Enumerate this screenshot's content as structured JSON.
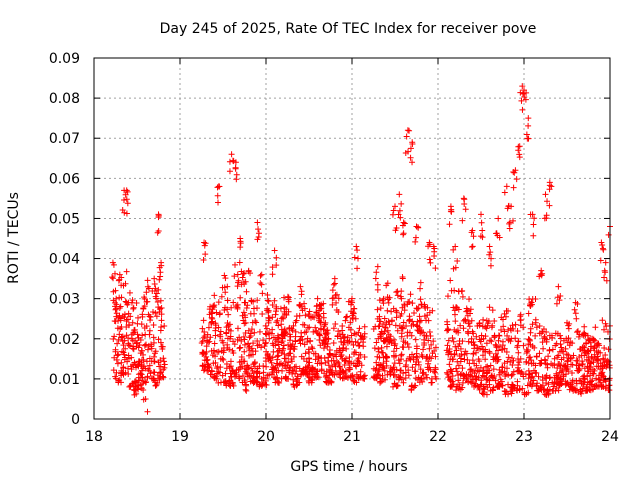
{
  "chart_data": {
    "type": "scatter",
    "title": "Day 245 of 2025, Rate Of TEC Index for receiver pove",
    "xlabel": "GPS time / hours",
    "ylabel": "ROTI / TECUs",
    "xlim": [
      18,
      24
    ],
    "ylim": [
      0,
      0.09
    ],
    "xticks": [
      "18",
      "19",
      "20",
      "21",
      "22",
      "23",
      "24"
    ],
    "yticks": [
      "0",
      "0.01",
      "0.02",
      "0.03",
      "0.04",
      "0.05",
      "0.06",
      "0.07",
      "0.08",
      "0.09"
    ],
    "grid": true,
    "marker": "+",
    "color": "#ff0000",
    "series": [
      {
        "name": "ROTI",
        "x": [
          18.22,
          18.25,
          18.3,
          18.35,
          18.38,
          18.4,
          18.45,
          18.5,
          18.55,
          18.6,
          18.65,
          18.7,
          18.75,
          18.78,
          18.8,
          19.28,
          19.35,
          19.45,
          19.55,
          19.6,
          19.65,
          19.7,
          19.75,
          19.8,
          19.9,
          19.95,
          20.0,
          20.1,
          20.2,
          20.3,
          20.4,
          20.5,
          20.6,
          20.7,
          20.8,
          20.9,
          21.0,
          21.05,
          21.1,
          21.3,
          21.4,
          21.5,
          21.55,
          21.6,
          21.65,
          21.7,
          21.75,
          21.8,
          21.9,
          21.95,
          22.15,
          22.2,
          22.3,
          22.4,
          22.5,
          22.6,
          22.7,
          22.8,
          22.85,
          22.9,
          22.95,
          22.98,
          23.0,
          23.05,
          23.1,
          23.2,
          23.25,
          23.3,
          23.4,
          23.5,
          23.6,
          23.7,
          23.8,
          23.9,
          23.95,
          24.0
        ],
        "y": [
          0.039,
          0.032,
          0.036,
          0.057,
          0.057,
          0.029,
          0.024,
          0.019,
          0.014,
          0.005,
          0.022,
          0.035,
          0.051,
          0.039,
          0.018,
          0.044,
          0.028,
          0.058,
          0.033,
          0.066,
          0.064,
          0.045,
          0.029,
          0.022,
          0.049,
          0.036,
          0.019,
          0.042,
          0.025,
          0.018,
          0.033,
          0.015,
          0.03,
          0.022,
          0.035,
          0.019,
          0.03,
          0.043,
          0.016,
          0.038,
          0.024,
          0.053,
          0.056,
          0.049,
          0.072,
          0.069,
          0.048,
          0.034,
          0.044,
          0.043,
          0.053,
          0.043,
          0.055,
          0.047,
          0.051,
          0.043,
          0.05,
          0.058,
          0.053,
          0.062,
          0.068,
          0.083,
          0.082,
          0.075,
          0.051,
          0.037,
          0.056,
          0.059,
          0.033,
          0.024,
          0.029,
          0.023,
          0.02,
          0.044,
          0.039,
          0.048
        ]
      }
    ],
    "envelope": {
      "segments": [
        {
          "x0": 18.22,
          "x1": 18.82,
          "top": [
            0.03,
            0.034,
            0.038,
            0.034,
            0.029,
            0.03,
            0.035,
            0.033,
            0.036,
            0.031
          ],
          "bottom": [
            0.01,
            0.009,
            0.011,
            0.008,
            0.006,
            0.007,
            0.009,
            0.01,
            0.008,
            0.009
          ]
        },
        {
          "x0": 19.25,
          "x1": 21.15,
          "top": [
            0.025,
            0.032,
            0.036,
            0.03,
            0.04,
            0.037,
            0.032,
            0.03,
            0.034,
            0.028,
            0.031,
            0.026,
            0.03,
            0.027,
            0.029,
            0.025,
            0.031,
            0.026,
            0.03,
            0.024
          ],
          "bottom": [
            0.012,
            0.01,
            0.009,
            0.008,
            0.01,
            0.007,
            0.009,
            0.008,
            0.01,
            0.009,
            0.01,
            0.008,
            0.011,
            0.009,
            0.01,
            0.009,
            0.011,
            0.01,
            0.009,
            0.01
          ]
        },
        {
          "x0": 21.25,
          "x1": 21.98,
          "top": [
            0.028,
            0.03,
            0.034,
            0.032,
            0.037,
            0.033,
            0.03,
            0.029,
            0.031,
            0.027
          ],
          "bottom": [
            0.01,
            0.009,
            0.011,
            0.008,
            0.009,
            0.01,
            0.007,
            0.009,
            0.01,
            0.009
          ]
        },
        {
          "x0": 22.1,
          "x1": 24.0,
          "top": [
            0.036,
            0.033,
            0.03,
            0.027,
            0.025,
            0.028,
            0.026,
            0.029,
            0.024,
            0.027,
            0.03,
            0.025,
            0.022,
            0.024,
            0.02,
            0.023,
            0.022,
            0.021,
            0.023,
            0.025
          ],
          "bottom": [
            0.008,
            0.007,
            0.009,
            0.008,
            0.006,
            0.007,
            0.008,
            0.006,
            0.007,
            0.006,
            0.008,
            0.007,
            0.006,
            0.007,
            0.008,
            0.007,
            0.006,
            0.007,
            0.008,
            0.007
          ]
        }
      ]
    }
  }
}
